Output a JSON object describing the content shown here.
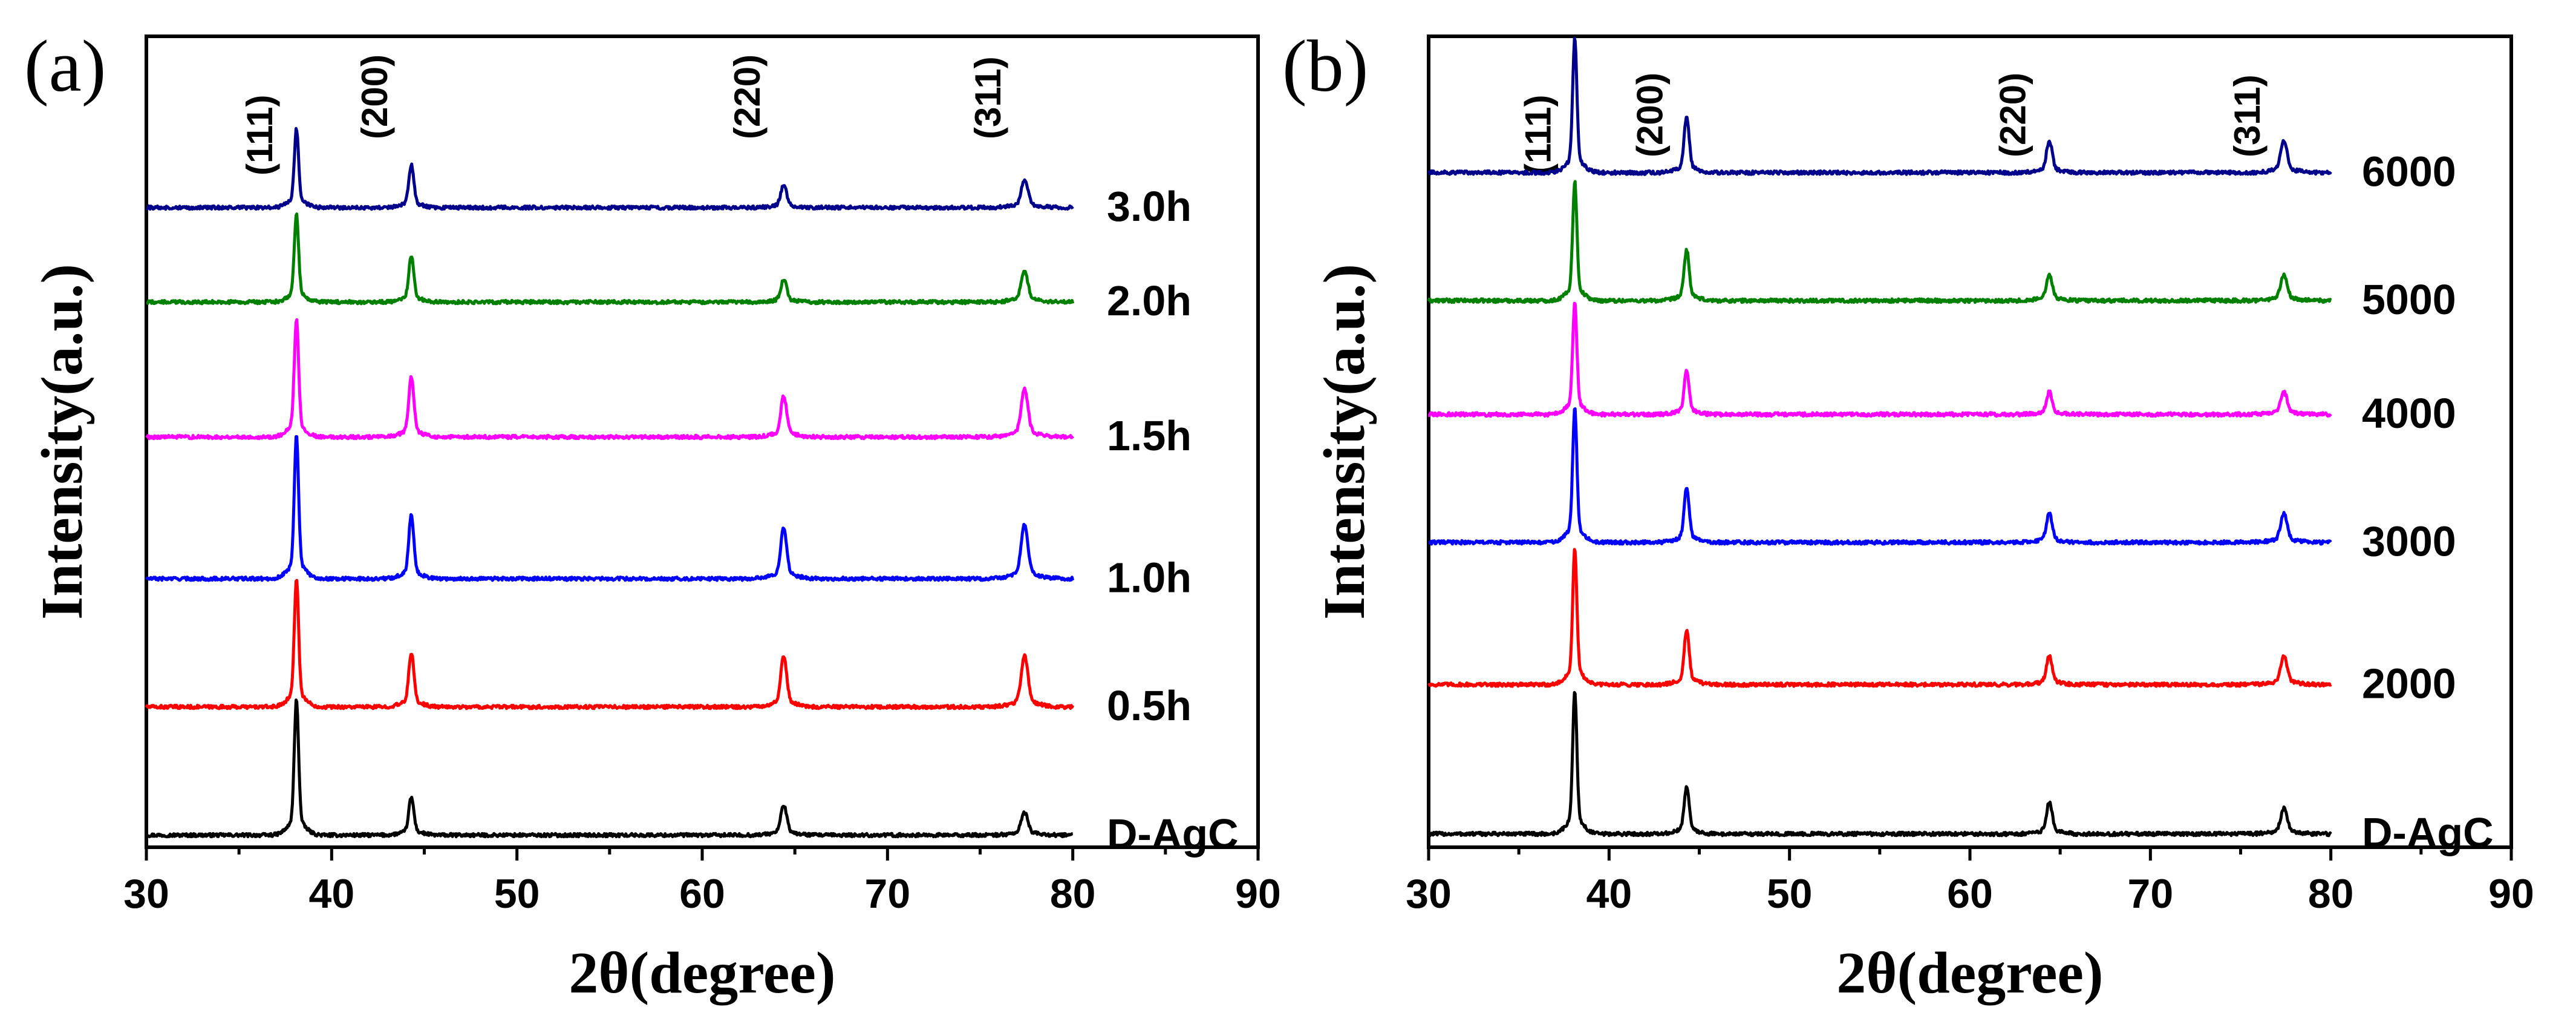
{
  "chart_data": [
    {
      "type": "line",
      "panel_label": "(a)",
      "xlabel": "2θ(degree)",
      "ylabel": "Intensity(a.u.)",
      "xlim": [
        30,
        90
      ],
      "xticks": [
        "30",
        "40",
        "50",
        "60",
        "70",
        "80",
        "90"
      ],
      "peak_positions": [
        38.1,
        44.3,
        64.4,
        77.4
      ],
      "peak_labels": [
        "(111)",
        "(200)",
        "(220)",
        "(311)"
      ],
      "x_range_of_traces": [
        30,
        80
      ],
      "series": [
        {
          "name": "D-AgC",
          "color": "#000000",
          "baseline": 0.0,
          "peaks": [
            0.9,
            0.25,
            0.2,
            0.15
          ]
        },
        {
          "name": "0.5h",
          "color": "#ff0000",
          "baseline": 0.95,
          "peaks": [
            0.85,
            0.36,
            0.34,
            0.34
          ]
        },
        {
          "name": "1.0h",
          "color": "#0000ff",
          "baseline": 1.9,
          "peaks": [
            0.95,
            0.42,
            0.34,
            0.36
          ]
        },
        {
          "name": "1.5h",
          "color": "#ff00ff",
          "baseline": 2.95,
          "peaks": [
            0.78,
            0.4,
            0.27,
            0.32
          ]
        },
        {
          "name": "2.0h",
          "color": "#008000",
          "baseline": 3.95,
          "peaks": [
            0.58,
            0.3,
            0.15,
            0.2
          ]
        },
        {
          "name": "3.0h",
          "color": "#00008b",
          "baseline": 4.65,
          "peaks": [
            0.52,
            0.28,
            0.15,
            0.18
          ]
        }
      ]
    },
    {
      "type": "line",
      "panel_label": "(b)",
      "xlabel": "2θ(degree)",
      "ylabel": "Intensity(a.u.)",
      "xlim": [
        30,
        90
      ],
      "xticks": [
        "30",
        "40",
        "50",
        "60",
        "70",
        "80",
        "90"
      ],
      "peak_positions": [
        38.1,
        44.3,
        64.4,
        77.4
      ],
      "peak_labels": [
        "(111)",
        "(200)",
        "(220)",
        "(311)"
      ],
      "x_range_of_traces": [
        30,
        80
      ],
      "series": [
        {
          "name": "D-AgC",
          "color": "#000000",
          "baseline": 0.0,
          "peaks": [
            0.9,
            0.3,
            0.2,
            0.16
          ]
        },
        {
          "name": "2000",
          "color": "#ff0000",
          "baseline": 1.05,
          "peaks": [
            0.85,
            0.34,
            0.18,
            0.18
          ]
        },
        {
          "name": "3000",
          "color": "#0000ff",
          "baseline": 2.05,
          "peaks": [
            0.85,
            0.35,
            0.18,
            0.18
          ]
        },
        {
          "name": "4000",
          "color": "#ff00ff",
          "baseline": 2.95,
          "peaks": [
            0.7,
            0.27,
            0.14,
            0.14
          ]
        },
        {
          "name": "5000",
          "color": "#008000",
          "baseline": 3.75,
          "peaks": [
            0.75,
            0.32,
            0.17,
            0.16
          ]
        },
        {
          "name": "6000",
          "color": "#00008b",
          "baseline": 4.65,
          "peaks": [
            0.85,
            0.35,
            0.2,
            0.2
          ]
        }
      ]
    }
  ]
}
